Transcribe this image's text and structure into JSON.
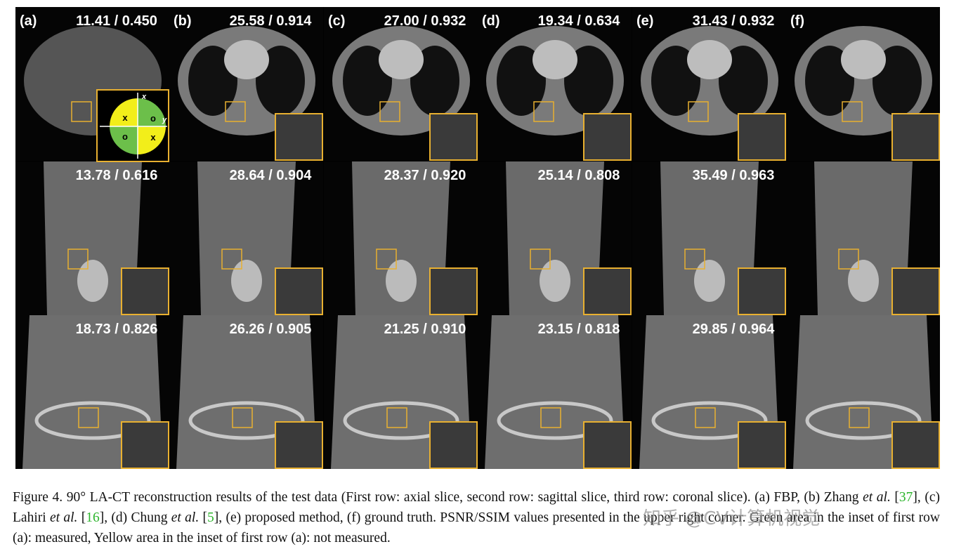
{
  "figure": {
    "panel_labels": [
      "(a)",
      "(b)",
      "(c)",
      "(d)",
      "(e)",
      "(f)"
    ],
    "rows": [
      [
        "11.41 / 0.450",
        "25.58 / 0.914",
        "27.00 / 0.932",
        "19.34 / 0.634",
        "31.43 / 0.932",
        null
      ],
      [
        "13.78 / 0.616",
        "28.64 / 0.904",
        "28.37 / 0.920",
        "25.14 / 0.808",
        "35.49 / 0.963",
        null
      ],
      [
        "18.73 / 0.826",
        "26.26 / 0.905",
        "21.25 / 0.910",
        "23.15 / 0.818",
        "29.85 / 0.964",
        null
      ]
    ],
    "inset": {
      "axis_x": "x",
      "axis_y": "y",
      "quadrants": [
        "x",
        "o",
        "o",
        "x"
      ]
    }
  },
  "caption": [
    "Figure 4. 90° LA-CT reconstruction results of the test data (First row: axial slice, second row: sagittal slice, third row: coronal slice). (a) FBP, (b) Zhang ",
    "et al.",
    " [",
    "37",
    "], (c) Lahiri ",
    "et al.",
    " [",
    "16",
    "], (d) Chung ",
    "et al.",
    " [",
    "5",
    "], (e) proposed method, (f) ground truth. PSNR/SSIM values presented in the upper right corner. Green area in the inset of first row (a): measured, Yellow area in the inset of first row (a): not measured."
  ],
  "watermark": "知乎 @CV计算机视觉"
}
